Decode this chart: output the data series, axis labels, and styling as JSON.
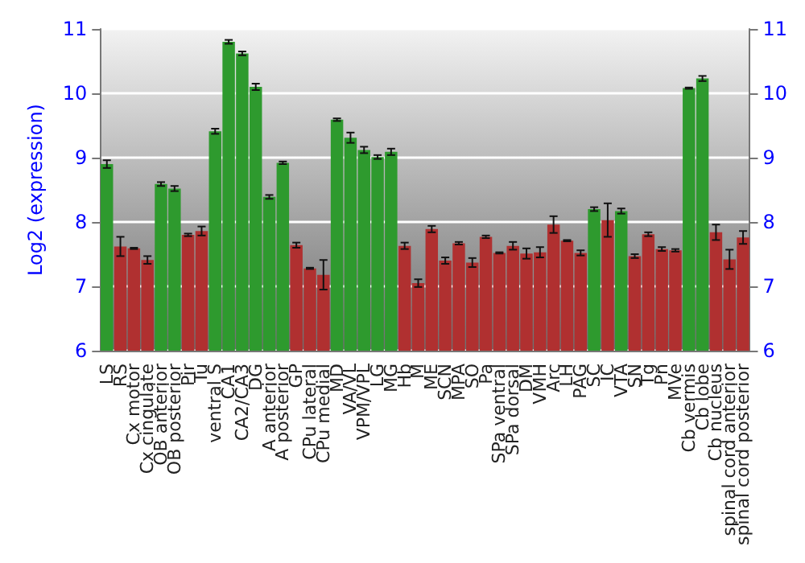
{
  "chart_data": {
    "type": "bar",
    "ylabel": "Log2 (expression)",
    "categories": [
      "LS",
      "RS",
      "Cx motor",
      "Cx cingulate",
      "OB anterior",
      "OB posterior",
      "Pir",
      "Tu",
      "ventral S",
      "CA1",
      "CA2/CA3",
      "DG",
      "A anterior",
      "A posterior",
      "GP",
      "CPu lateral",
      "CPu medial",
      "MD",
      "VA/VL",
      "VPM/VPL",
      "LG",
      "MG",
      "Hb",
      "M",
      "ME",
      "SCN",
      "MPA",
      "SO",
      "Pa",
      "SPa ventral",
      "SPa dorsal",
      "DM",
      "VMH",
      "Arc",
      "LH",
      "PAG",
      "SC",
      "IC",
      "VTA",
      "SN",
      "Tg",
      "Pn",
      "MVe",
      "Cb vermis",
      "Cb lobe",
      "Cb nucleus",
      "spinal cord anterior",
      "spinal cord posterior"
    ],
    "values": [
      8.9,
      7.62,
      7.59,
      7.41,
      8.59,
      8.52,
      7.8,
      7.86,
      9.41,
      10.8,
      10.62,
      10.1,
      8.39,
      8.92,
      7.64,
      7.28,
      7.18,
      9.59,
      9.31,
      9.12,
      9.01,
      9.09,
      7.63,
      7.05,
      7.89,
      7.4,
      7.67,
      7.37,
      7.77,
      7.52,
      7.63,
      7.51,
      7.53,
      7.96,
      7.71,
      7.52,
      8.2,
      8.03,
      8.17,
      7.47,
      7.81,
      7.58,
      7.56,
      10.08,
      10.23,
      7.84,
      7.42,
      7.76
    ],
    "errors": [
      0.06,
      0.15,
      0.01,
      0.06,
      0.03,
      0.04,
      0.02,
      0.07,
      0.04,
      0.03,
      0.03,
      0.05,
      0.03,
      0.02,
      0.04,
      0.01,
      0.23,
      0.02,
      0.08,
      0.05,
      0.03,
      0.05,
      0.05,
      0.06,
      0.05,
      0.05,
      0.02,
      0.07,
      0.02,
      0.01,
      0.06,
      0.08,
      0.08,
      0.13,
      0.01,
      0.04,
      0.03,
      0.26,
      0.04,
      0.03,
      0.03,
      0.03,
      0.02,
      0.01,
      0.04,
      0.12,
      0.15,
      0.1
    ],
    "colors": [
      "#2e9a2e",
      "#b03030",
      "#b03030",
      "#b03030",
      "#2e9a2e",
      "#2e9a2e",
      "#b03030",
      "#b03030",
      "#2e9a2e",
      "#2e9a2e",
      "#2e9a2e",
      "#2e9a2e",
      "#2e9a2e",
      "#2e9a2e",
      "#b03030",
      "#b03030",
      "#b03030",
      "#2e9a2e",
      "#2e9a2e",
      "#2e9a2e",
      "#2e9a2e",
      "#2e9a2e",
      "#b03030",
      "#b03030",
      "#b03030",
      "#b03030",
      "#b03030",
      "#b03030",
      "#b03030",
      "#b03030",
      "#b03030",
      "#b03030",
      "#b03030",
      "#b03030",
      "#b03030",
      "#b03030",
      "#2e9a2e",
      "#b03030",
      "#2e9a2e",
      "#b03030",
      "#b03030",
      "#b03030",
      "#b03030",
      "#2e9a2e",
      "#2e9a2e",
      "#b03030",
      "#b03030",
      "#b03030"
    ],
    "ylim": [
      6,
      11
    ],
    "yticks": [
      6,
      7,
      8,
      9,
      10,
      11
    ],
    "y2lim": [
      6,
      11
    ],
    "y2ticks": [
      6,
      7,
      8,
      9,
      10,
      11
    ],
    "grid": "y"
  }
}
